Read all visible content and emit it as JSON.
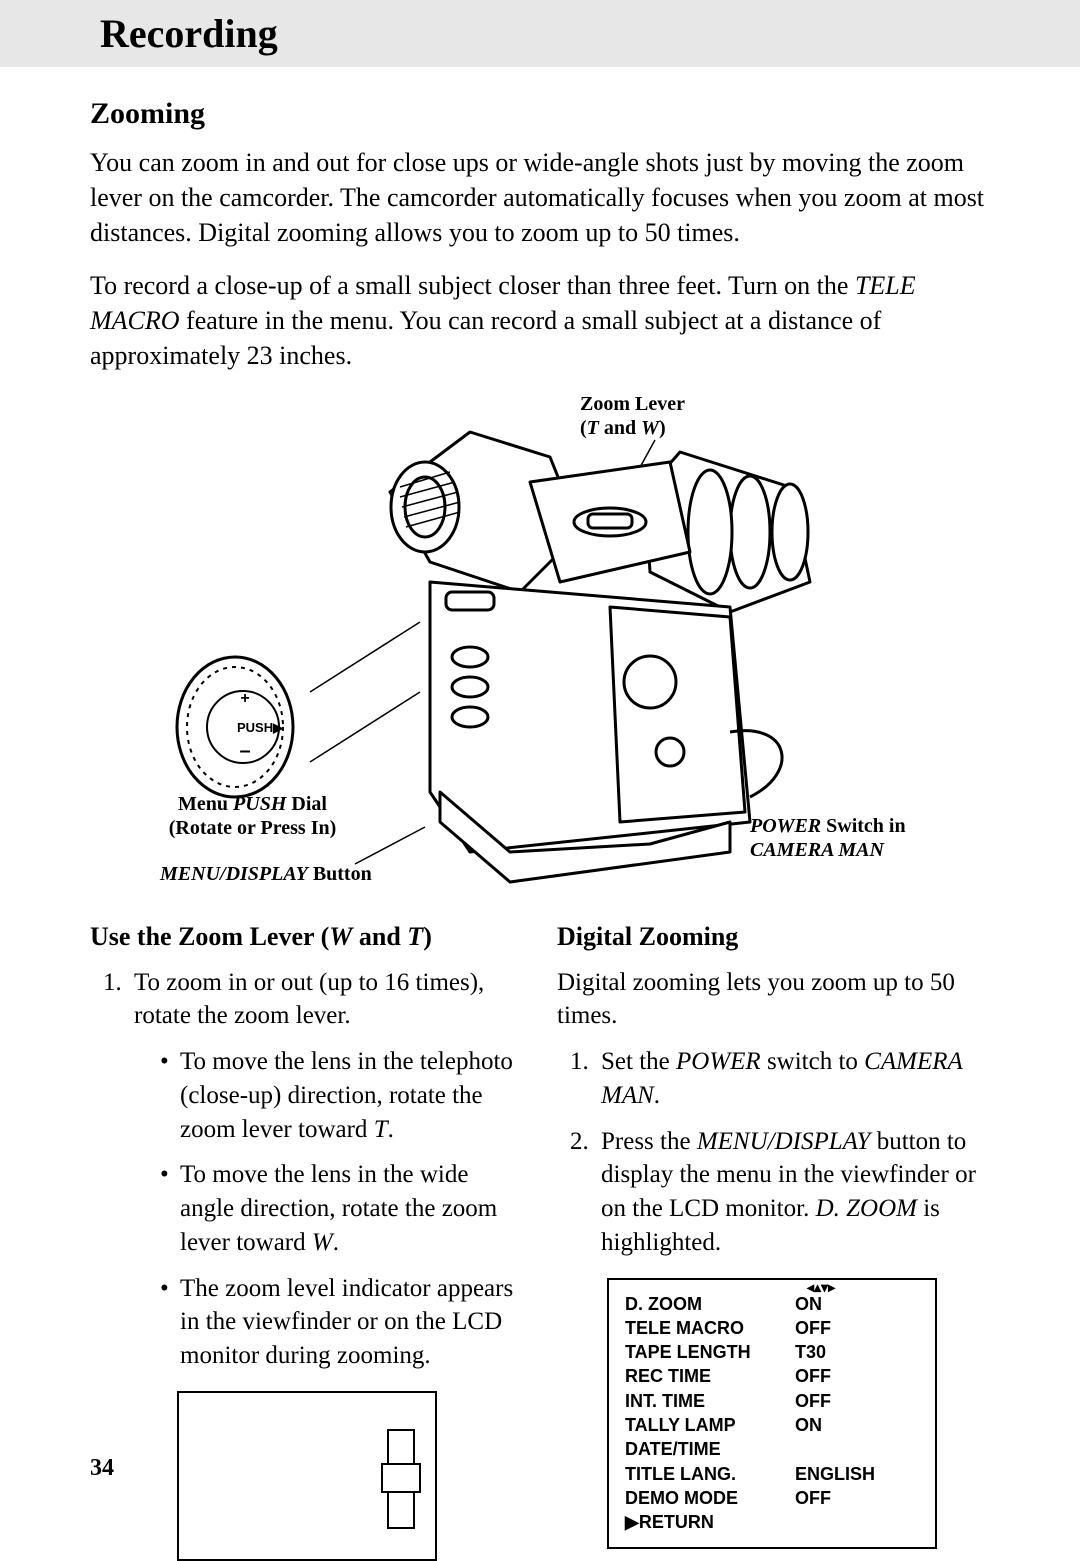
{
  "header": {
    "title": "Recording"
  },
  "section": {
    "heading": "Zooming",
    "para1": "You can zoom in and out for close ups or wide-angle shots just by moving the zoom lever on the camcorder.  The camcorder automatically focuses when you zoom at most distances. Digital zooming allows you to zoom up to 50 times.",
    "para2_a": "To record a close-up of a small subject closer than three feet.  Turn on the ",
    "para2_i": "TELE MACRO",
    "para2_b": " feature in the menu.  You can record a small subject at a distance of approximately 23 inches."
  },
  "diagram": {
    "zoom_lever_l1": "Zoom Lever",
    "zoom_lever_l2_a": "(",
    "zoom_lever_l2_i1": "T",
    "zoom_lever_l2_mid": " and ",
    "zoom_lever_l2_i2": "W",
    "zoom_lever_l2_b": ")",
    "menu_push_l1_a": "Menu ",
    "menu_push_l1_i": "PUSH",
    "menu_push_l1_b": " Dial",
    "menu_push_l2": "(Rotate or Press In)",
    "menu_display_i": "MENU/DISPLAY",
    "menu_display_b": " Button",
    "power_l1_i": "POWER",
    "power_l1_b": " Switch in",
    "power_l2_i": "CAMERA MAN",
    "push_label": "PUSH"
  },
  "left": {
    "heading_a": "Use the Zoom Lever (",
    "heading_i1": "W",
    "heading_mid": " and ",
    "heading_i2": "T",
    "heading_b": ")",
    "item1": "To zoom in or out (up to 16 times), rotate the zoom lever.",
    "b1_a": "To move the lens in the telephoto (close-up) direction, rotate the zoom lever toward ",
    "b1_i": "T",
    "b1_b": ".",
    "b2_a": "To move the lens in the wide angle direction, rotate the zoom lever toward ",
    "b2_i": "W",
    "b2_b": ".",
    "b3": "The zoom level indicator appears in the viewfinder or on the LCD monitor during zooming."
  },
  "right": {
    "heading": "Digital Zooming",
    "intro": "Digital zooming lets you zoom up to 50 times.",
    "item1_a": "Set the ",
    "item1_i1": "POWER",
    "item1_mid": " switch to ",
    "item1_i2": "CAMERA MAN",
    "item1_b": ".",
    "item2_a": "Press the ",
    "item2_i1": "MENU/DISPLAY",
    "item2_mid": " button to display the menu in the viewfinder or on the LCD monitor.  ",
    "item2_i2": "D. ZOOM",
    "item2_b": " is highlighted.",
    "menu": {
      "rows": [
        {
          "label": "D. ZOOM",
          "value": "ON"
        },
        {
          "label": "TELE MACRO",
          "value": "OFF"
        },
        {
          "label": "TAPE LENGTH",
          "value": "T30"
        },
        {
          "label": "REC TIME",
          "value": "OFF"
        },
        {
          "label": "INT. TIME",
          "value": "OFF"
        },
        {
          "label": "TALLY LAMP",
          "value": "ON"
        },
        {
          "label": "DATE/TIME",
          "value": ""
        },
        {
          "label": "TITLE LANG.",
          "value": "ENGLISH"
        },
        {
          "label": "DEMO MODE",
          "value": "OFF"
        },
        {
          "label": "▶RETURN",
          "value": ""
        }
      ]
    }
  },
  "page_number": "34",
  "colors": {
    "bg": "#ffffff",
    "bar": "#e7e7e7",
    "text": "#000000"
  }
}
